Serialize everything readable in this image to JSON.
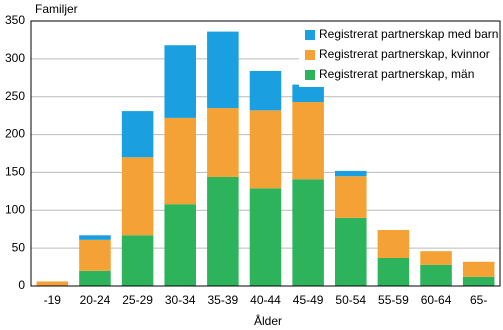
{
  "chart_data": {
    "type": "stacked_bar",
    "y_label": "Familjer",
    "x_label": "Ålder",
    "categories": [
      "-19",
      "20-24",
      "25-29",
      "30-34",
      "35-39",
      "40-44",
      "45-49",
      "50-54",
      "55-59",
      "60-64",
      "65-"
    ],
    "series": [
      {
        "name": "Registrerat partnerskap med barn",
        "color": "#1aa0e0",
        "values": [
          0,
          6,
          61,
          96,
          101,
          52,
          23,
          7,
          0,
          0,
          0
        ]
      },
      {
        "name": "Registrerat partnerskap, kvinnor",
        "color": "#f4a236",
        "values": [
          6,
          41,
          103,
          114,
          91,
          103,
          102,
          55,
          37,
          18,
          20
        ]
      },
      {
        "name": "Registrerat partnerskap, män",
        "color": "#2db35b",
        "values": [
          0,
          20,
          67,
          108,
          144,
          129,
          141,
          90,
          37,
          28,
          12
        ]
      }
    ],
    "ylim": [
      0,
      350
    ],
    "yticks": [
      0,
      50,
      100,
      150,
      200,
      250,
      300,
      350
    ],
    "grid": true,
    "legend": "upper right"
  }
}
